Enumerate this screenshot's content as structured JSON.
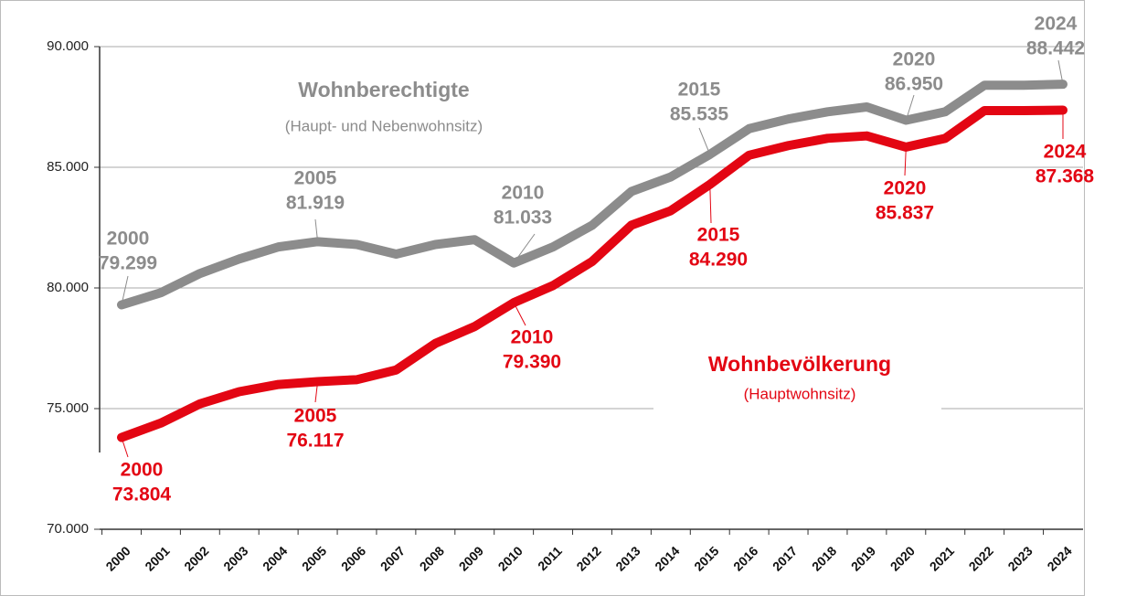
{
  "chart_data": {
    "type": "line",
    "categories": [
      "2000",
      "2001",
      "2002",
      "2003",
      "2004",
      "2005",
      "2006",
      "2007",
      "2008",
      "2009",
      "2010",
      "2011",
      "2012",
      "2013",
      "2014",
      "2015",
      "2016",
      "2017",
      "2018",
      "2019",
      "2020",
      "2021",
      "2022",
      "2023",
      "2024"
    ],
    "series": [
      {
        "name": "Wohnberechtigte",
        "description": "(Haupt- und Nebenwohnsitz)",
        "color": "#8c8c8c",
        "values": [
          79299,
          79800,
          80600,
          81200,
          81700,
          81919,
          81800,
          81400,
          81800,
          82000,
          81033,
          81700,
          82600,
          84000,
          84600,
          85535,
          86600,
          87000,
          87300,
          87500,
          86950,
          87300,
          88400,
          88400,
          88442
        ],
        "value_labels": [
          "79.299",
          null,
          null,
          null,
          null,
          "81.919",
          null,
          null,
          null,
          null,
          "81.033",
          null,
          null,
          null,
          null,
          "85.535",
          null,
          null,
          null,
          null,
          "86.950",
          null,
          null,
          null,
          "88.442"
        ]
      },
      {
        "name": "Wohnbevölkerung",
        "description": "(Hauptwohnsitz)",
        "color": "#e30613",
        "values": [
          73804,
          74400,
          75200,
          75700,
          76000,
          76117,
          76200,
          76600,
          77700,
          78400,
          79390,
          80100,
          81100,
          82600,
          83200,
          84290,
          85500,
          85900,
          86200,
          86300,
          85837,
          86200,
          87350,
          87350,
          87368
        ],
        "value_labels": [
          "73.804",
          null,
          null,
          null,
          null,
          "76.117",
          null,
          null,
          null,
          null,
          "79.390",
          null,
          null,
          null,
          null,
          "84.290",
          null,
          null,
          null,
          null,
          "85.837",
          null,
          null,
          null,
          "87.368"
        ]
      }
    ],
    "ylim": [
      70000,
      90000
    ],
    "yticks": [
      {
        "value": 70000,
        "label": "70.000"
      },
      {
        "value": 75000,
        "label": "75.000"
      },
      {
        "value": 80000,
        "label": "80.000"
      },
      {
        "value": 85000,
        "label": "85.000"
      },
      {
        "value": 90000,
        "label": "90.000"
      }
    ],
    "grid": true
  }
}
